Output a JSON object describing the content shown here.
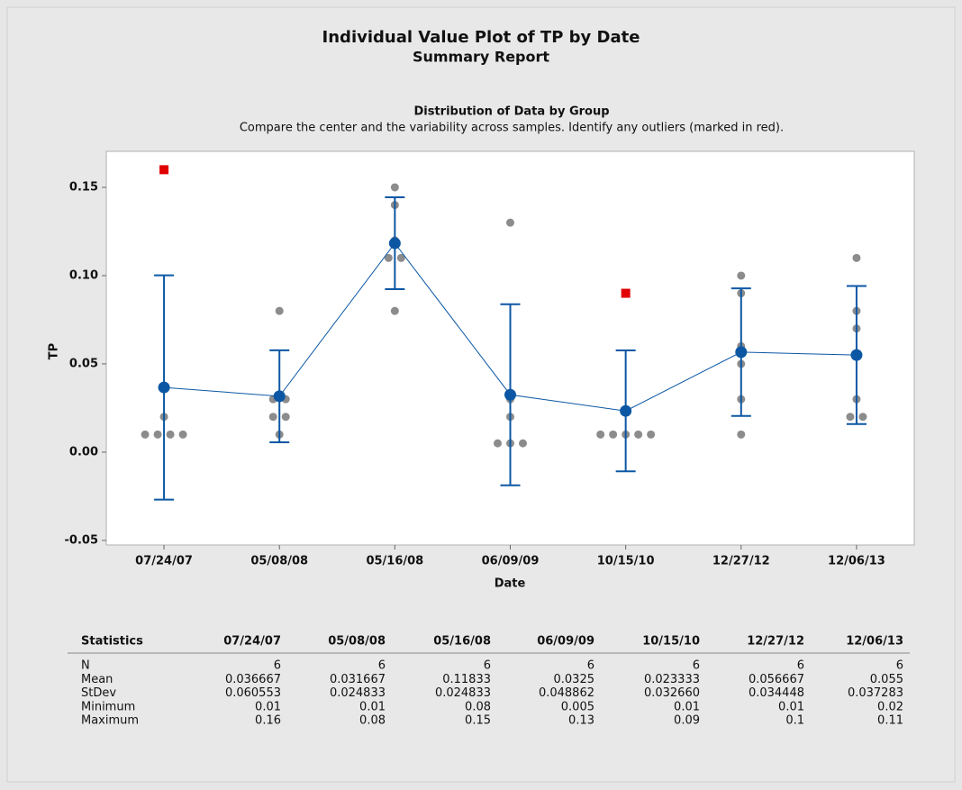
{
  "chart_data": {
    "type": "individual_value",
    "title": "Individual Value Plot of TP by Date",
    "subtitle": "Summary Report",
    "section_title": "Distribution of Data by Group",
    "section_subtitle": "Compare the center and the variability across samples. Identify any outliers (marked in red).",
    "categories": [
      "07/24/07",
      "05/08/08",
      "05/16/08",
      "06/09/09",
      "10/15/10",
      "12/27/12",
      "12/06/13"
    ],
    "x_label": "Date",
    "y_label": "TP",
    "ylim": [
      -0.0526,
      0.1704
    ],
    "yticks": [
      {
        "value": -0.05,
        "label": "-0.05"
      },
      {
        "value": 0,
        "label": "0.00"
      },
      {
        "value": 0.05,
        "label": "0.05"
      },
      {
        "value": 0.1,
        "label": "0.10"
      },
      {
        "value": 0.15,
        "label": "0.15"
      }
    ],
    "points": [
      [
        0.01,
        0.01,
        0.01,
        0.01,
        0.02
      ],
      [
        0.08,
        0.03,
        0.03,
        0.02,
        0.02,
        0.01
      ],
      [
        0.15,
        0.14,
        0.12,
        0.11,
        0.11,
        0.08
      ],
      [
        0.13,
        0.03,
        0.02,
        0.005,
        0.005,
        0.005
      ],
      [
        0.01,
        0.01,
        0.01,
        0.01,
        0.01
      ],
      [
        0.1,
        0.09,
        0.06,
        0.05,
        0.03,
        0.01
      ],
      [
        0.11,
        0.08,
        0.07,
        0.03,
        0.02,
        0.02
      ]
    ],
    "outlier_values": [
      [
        0.16
      ],
      [],
      [],
      [],
      [
        0.09
      ],
      [],
      []
    ],
    "ci_low": [
      -0.0269,
      0.0056,
      0.0923,
      -0.0188,
      -0.0109,
      0.0205,
      0.0159
    ],
    "ci_high": [
      0.1002,
      0.0577,
      0.1444,
      0.0838,
      0.0576,
      0.0928,
      0.0941
    ],
    "point_color": "#8c8c8c",
    "outlier_color": "#e00000",
    "mean_color": "#0b57a4"
  },
  "table": {
    "title": "Statistics",
    "rows": [
      {
        "label": "N",
        "values": [
          6,
          6,
          6,
          6,
          6,
          6,
          6
        ]
      },
      {
        "label": "Mean",
        "values": [
          0.036667,
          0.031667,
          0.11833,
          0.0325,
          0.023333,
          0.056667,
          0.055
        ]
      },
      {
        "label": "StDev",
        "values": [
          0.060553,
          0.024833,
          0.024833,
          0.048862,
          {
            "value": 0.03266,
            "label": "0.032660"
          },
          0.034448,
          0.037283
        ]
      },
      {
        "label": "Minimum",
        "values": [
          0.01,
          0.01,
          0.08,
          0.005,
          0.01,
          0.01,
          0.02
        ]
      },
      {
        "label": "Maximum",
        "values": [
          0.16,
          0.08,
          0.15,
          0.13,
          0.09,
          0.1,
          0.11
        ]
      }
    ]
  }
}
